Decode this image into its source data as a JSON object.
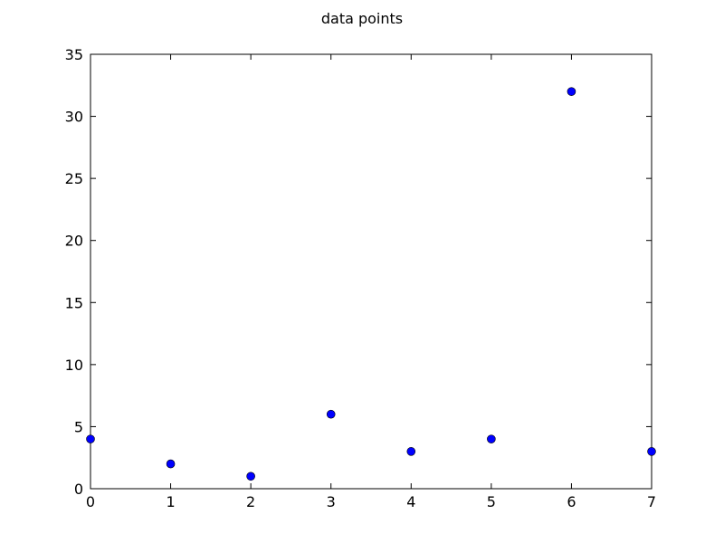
{
  "chart_data": {
    "type": "scatter",
    "title": "data points",
    "xlabel": "",
    "ylabel": "",
    "x": [
      0,
      1,
      2,
      3,
      4,
      5,
      6,
      7
    ],
    "series": [
      {
        "values": [
          4,
          2,
          1,
          6,
          3,
          4,
          32,
          3
        ]
      }
    ],
    "xlim": [
      0,
      7
    ],
    "ylim": [
      0,
      35
    ],
    "x_ticks": [
      "0",
      "1",
      "2",
      "3",
      "4",
      "5",
      "6",
      "7"
    ],
    "y_ticks": [
      "0",
      "5",
      "10",
      "15",
      "20",
      "25",
      "30",
      "35"
    ],
    "grid": false,
    "marker_color": "#0000ff"
  }
}
